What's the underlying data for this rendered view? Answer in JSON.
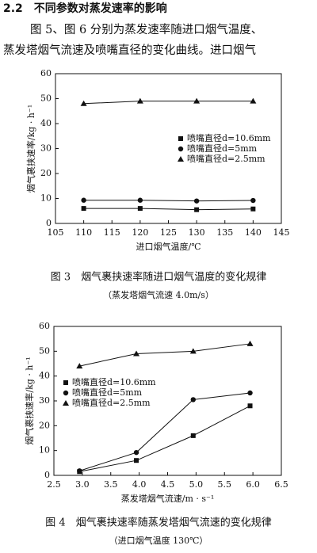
{
  "heading": "2.2　不同参数对蒸发速率的影响",
  "paragraph": [
    "图 5、图 6 分别为蒸发速率随进口烟气温度、",
    "蒸发塔烟气流速及喷嘴直径的变化曲线。进口烟气"
  ],
  "chart_data": [
    {
      "type": "line",
      "caption": "图 3　烟气裹挟速率随进口烟气温度的变化规律",
      "note": "（蒸发塔烟气流速 4.0m/s）",
      "x_label": "进口烟气温度/℃",
      "y_label": "烟气裹挟速率/kg · h⁻¹",
      "x": [
        110,
        120,
        130,
        140
      ],
      "xlim": [
        105,
        145
      ],
      "xticks": [
        105,
        110,
        115,
        120,
        125,
        130,
        135,
        140,
        145
      ],
      "ylim": [
        0,
        60
      ],
      "yticks": [
        0,
        10,
        20,
        30,
        40,
        50,
        60
      ],
      "series": [
        {
          "name": "喷嘴直径d=10.6mm",
          "color": "#111",
          "marker": "square",
          "values": [
            6,
            6,
            5.5,
            5.8
          ]
        },
        {
          "name": "喷嘴直径d=5mm",
          "color": "#111",
          "marker": "circle",
          "values": [
            9.3,
            9.3,
            9,
            9.2
          ]
        },
        {
          "name": "喷嘴直径d=2.5mm",
          "color": "#111",
          "marker": "triangle",
          "values": [
            48,
            49,
            49,
            49
          ]
        }
      ]
    },
    {
      "type": "line",
      "caption": "图 4　烟气裹挟速率随蒸发塔烟气流速的变化规律",
      "note": "（进口烟气温度 130℃）",
      "x_label": "蒸发塔烟气流速/m · s⁻¹",
      "y_label": "烟气裹挟速率/kg · h⁻¹",
      "x": [
        2.95,
        3.95,
        4.95,
        5.95
      ],
      "xlim": [
        2.5,
        6.5
      ],
      "xticks": [
        2.5,
        {
          "value": 3,
          "label": "3.0"
        },
        3.5,
        {
          "value": 4,
          "label": "4.0"
        },
        4.5,
        {
          "value": 5,
          "label": "5.0"
        },
        5.5,
        {
          "value": 6,
          "label": "6.0"
        },
        6.5
      ],
      "ylim": [
        0,
        60
      ],
      "yticks": [
        0,
        10,
        20,
        30,
        40,
        50,
        60
      ],
      "series": [
        {
          "name": "喷嘴直径d=10.6mm",
          "color": "#111",
          "marker": "square",
          "values": [
            1.5,
            6,
            16,
            28
          ]
        },
        {
          "name": "喷嘴直径d=5mm",
          "color": "#111",
          "marker": "circle",
          "values": [
            1.8,
            9.2,
            30.5,
            33.2
          ]
        },
        {
          "name": "喷嘴直径d=2.5mm",
          "color": "#111",
          "marker": "triangle",
          "values": [
            44,
            49,
            50,
            53
          ]
        }
      ]
    }
  ]
}
